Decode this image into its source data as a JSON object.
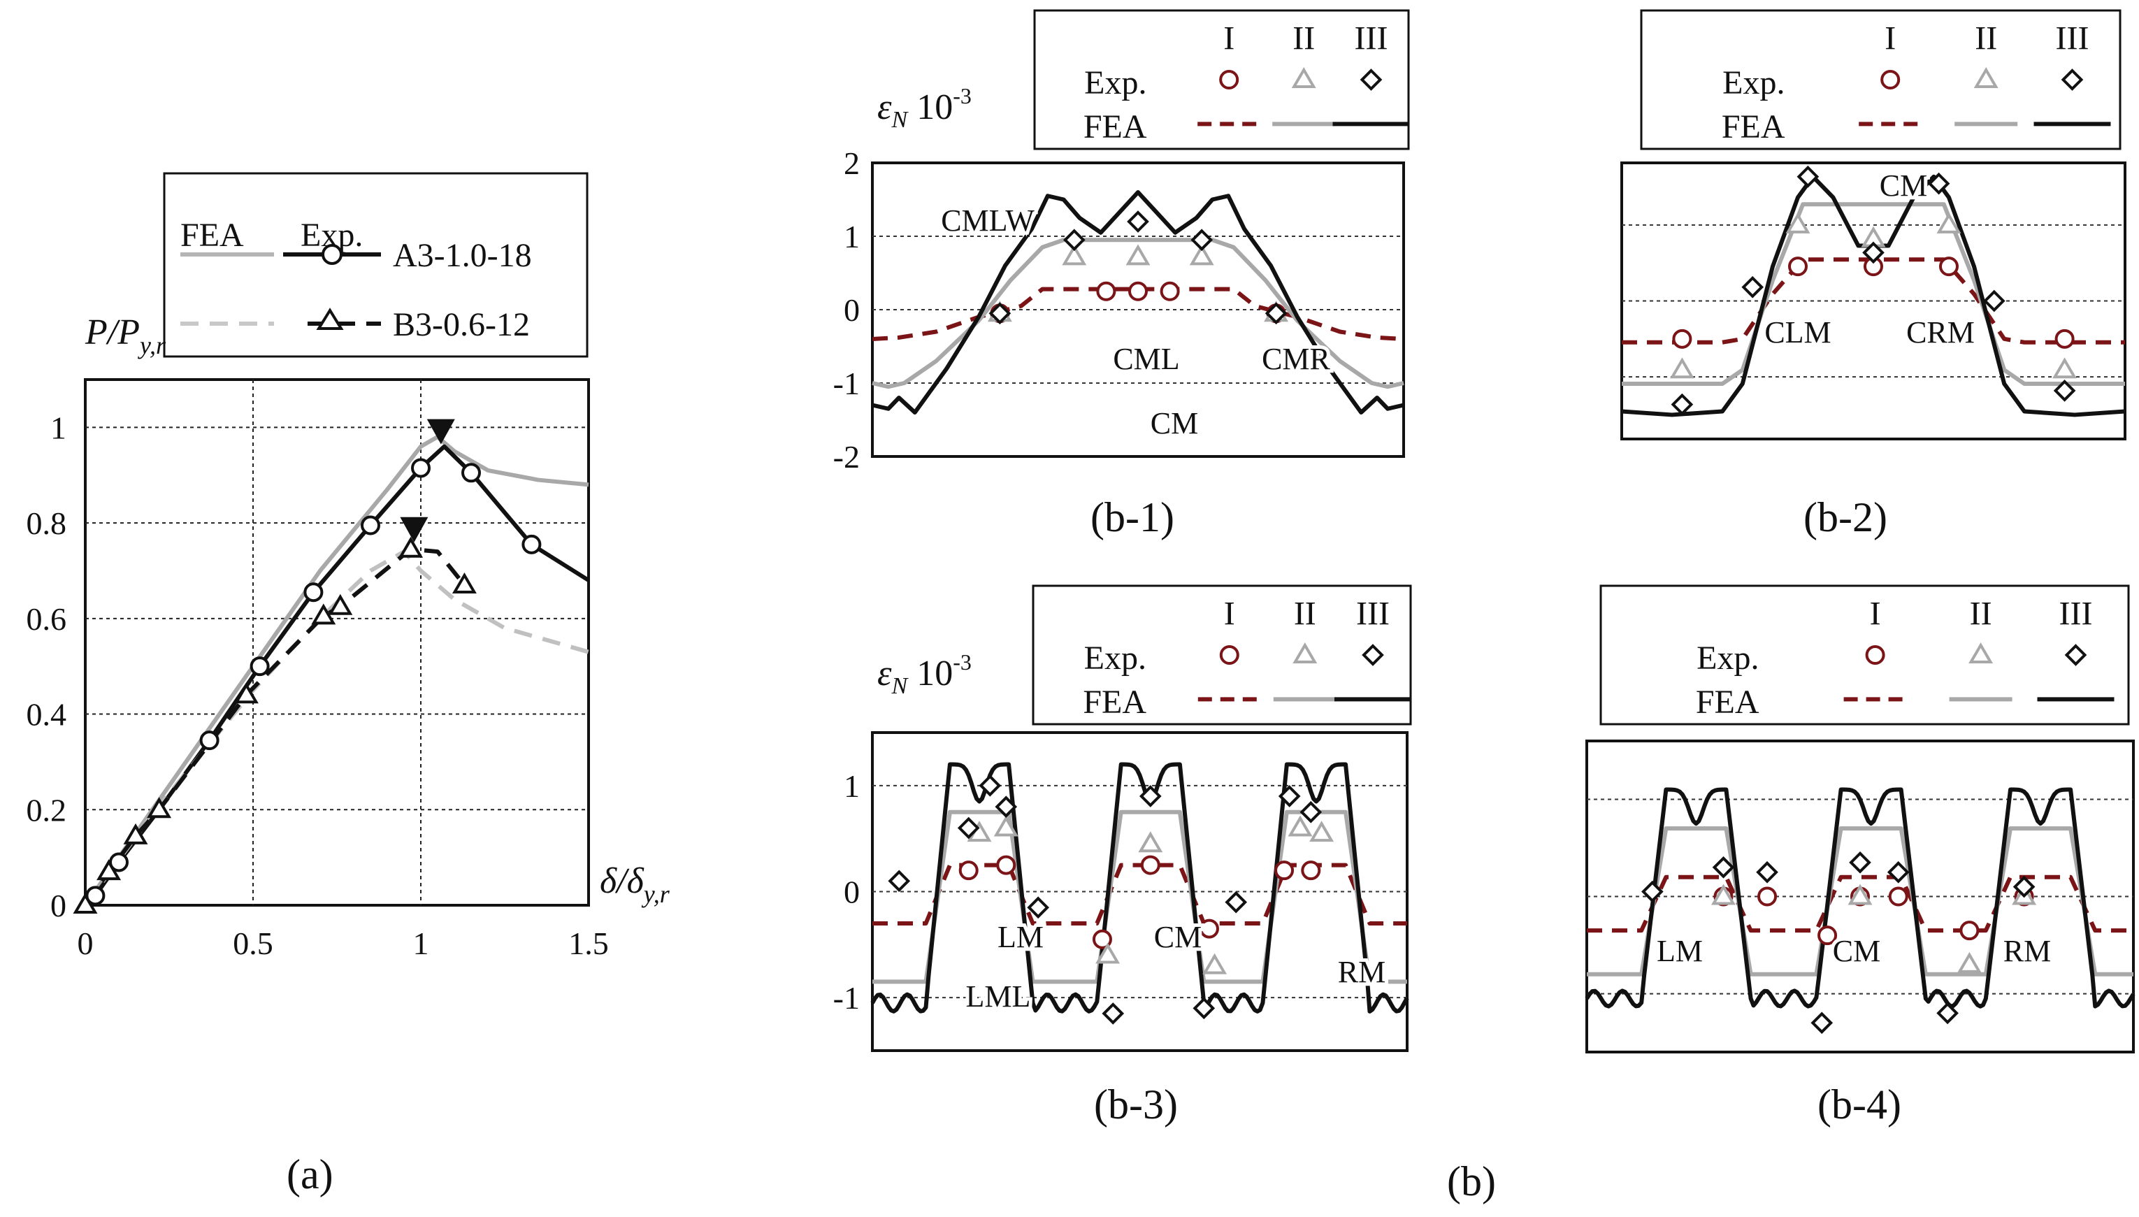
{
  "colors": {
    "black": "#111111",
    "gray": "#a8a8a8",
    "lightgray": "#c0c0c0",
    "red": "#7b1416"
  },
  "captions": {
    "a": "(a)",
    "b": "(b)",
    "b1": "(b-1)",
    "b2": "(b-2)",
    "b3": "(b-3)",
    "b4": "(b-4)"
  },
  "chart_data": [
    {
      "id": "a",
      "type": "line",
      "title": "",
      "xlabel": "δ/δy,r",
      "ylabel": "P/Py,r",
      "xlim": [
        0,
        1.5
      ],
      "ylim": [
        0,
        1.1
      ],
      "xticks": [
        "0",
        "0.5",
        "1",
        "1.5"
      ],
      "yticks": [
        "0",
        "0.2",
        "0.4",
        "0.6",
        "0.8",
        "1"
      ],
      "grid": true,
      "legend": {
        "header_fea": "FEA",
        "header_exp": "Exp.",
        "entries": [
          "A3-1.0-18",
          "B3-0.6-12"
        ],
        "position": "above"
      },
      "series": [
        {
          "name": "A3-1.0-18 FEA",
          "style": "gray-solid",
          "x": [
            0,
            0.2,
            0.5,
            0.7,
            0.9,
            1.0,
            1.05,
            1.1,
            1.2,
            1.35,
            1.5
          ],
          "y": [
            0,
            0.2,
            0.5,
            0.7,
            0.87,
            0.96,
            0.98,
            0.95,
            0.91,
            0.89,
            0.88
          ]
        },
        {
          "name": "A3-1.0-18 Exp.",
          "style": "black-solid-circle",
          "x": [
            0,
            0.03,
            0.1,
            0.22,
            0.37,
            0.52,
            0.68,
            0.85,
            1.0,
            1.07,
            1.15,
            1.33,
            1.5
          ],
          "y": [
            0,
            0.02,
            0.09,
            0.2,
            0.345,
            0.5,
            0.655,
            0.795,
            0.915,
            0.96,
            0.905,
            0.755,
            0.68
          ],
          "markers_x": [
            0.03,
            0.1,
            0.37,
            0.52,
            0.68,
            0.85,
            1.0,
            1.15,
            1.33
          ],
          "markers_y": [
            0.02,
            0.09,
            0.345,
            0.5,
            0.655,
            0.795,
            0.915,
            0.905,
            0.755
          ]
        },
        {
          "name": "B3-0.6-12 FEA",
          "style": "gray-dashed",
          "x": [
            0,
            0.2,
            0.5,
            0.7,
            0.85,
            0.95,
            1.0,
            1.1,
            1.25,
            1.5
          ],
          "y": [
            0,
            0.19,
            0.45,
            0.6,
            0.7,
            0.74,
            0.7,
            0.64,
            0.58,
            0.53
          ]
        },
        {
          "name": "B3-0.6-12 Exp.",
          "style": "black-dashed-triangle",
          "x": [
            0,
            0.07,
            0.15,
            0.22,
            0.48,
            0.71,
            0.76,
            0.97,
            1.05,
            1.13
          ],
          "y": [
            0,
            0.07,
            0.145,
            0.2,
            0.44,
            0.605,
            0.625,
            0.745,
            0.74,
            0.67
          ],
          "markers_x": [
            0,
            0.07,
            0.15,
            0.22,
            0.48,
            0.71,
            0.76,
            0.97,
            1.13
          ],
          "markers_y": [
            0,
            0.07,
            0.145,
            0.2,
            0.44,
            0.605,
            0.625,
            0.745,
            0.67
          ]
        }
      ],
      "annotations": [
        {
          "kind": "peak-marker",
          "series": "A3-1.0-18",
          "x": 1.06,
          "y": 0.985
        },
        {
          "kind": "peak-marker",
          "series": "B3-0.6-12",
          "x": 0.98,
          "y": 0.78
        }
      ]
    },
    {
      "id": "b-1",
      "type": "line",
      "ylabel": "εN 10-3",
      "ylim": [
        -2,
        2
      ],
      "yticks": [
        "-2",
        "-1",
        "0",
        "1",
        "2"
      ],
      "legend": {
        "cols": [
          "I",
          "II",
          "III"
        ],
        "rows": [
          "Exp.",
          "FEA"
        ],
        "position": "top"
      },
      "region_labels": [
        "CMLW",
        "CML",
        "CMR",
        "CM"
      ],
      "series": [
        {
          "name": "I FEA",
          "style": "red-dashed",
          "x": [
            0,
            0.05,
            0.12,
            0.2,
            0.28,
            0.32,
            0.42,
            0.58,
            0.68,
            0.72,
            0.8,
            0.88,
            0.95,
            1
          ],
          "y": [
            -0.4,
            -0.38,
            -0.3,
            -0.1,
            0.05,
            0.28,
            0.28,
            0.28,
            0.28,
            0.05,
            -0.1,
            -0.3,
            -0.38,
            -0.4
          ]
        },
        {
          "name": "II FEA",
          "style": "gray-solid",
          "x": [
            0,
            0.03,
            0.06,
            0.12,
            0.2,
            0.26,
            0.32,
            0.36,
            0.44,
            0.5,
            0.56,
            0.64,
            0.68,
            0.74,
            0.8,
            0.88,
            0.94,
            0.97,
            1
          ],
          "y": [
            -1,
            -1.05,
            -1,
            -0.7,
            -0.15,
            0.4,
            0.85,
            0.95,
            0.95,
            0.95,
            0.95,
            0.95,
            0.85,
            0.4,
            -0.15,
            -0.7,
            -1,
            -1.05,
            -1
          ]
        },
        {
          "name": "III FEA",
          "style": "black-solid",
          "x": [
            0,
            0.03,
            0.05,
            0.08,
            0.14,
            0.2,
            0.25,
            0.3,
            0.33,
            0.36,
            0.39,
            0.43,
            0.5,
            0.57,
            0.61,
            0.64,
            0.67,
            0.7,
            0.75,
            0.8,
            0.86,
            0.92,
            0.95,
            0.97,
            1
          ],
          "y": [
            -1.3,
            -1.35,
            -1.2,
            -1.4,
            -0.8,
            -0.1,
            0.6,
            1.1,
            1.55,
            1.5,
            1.25,
            1.05,
            1.6,
            1.05,
            1.25,
            1.5,
            1.55,
            1.1,
            0.6,
            -0.1,
            -0.8,
            -1.4,
            -1.2,
            -1.35,
            -1.3
          ]
        },
        {
          "name": "I Exp.",
          "style": "red-circle",
          "x": [
            0.24,
            0.44,
            0.5,
            0.56,
            0.76
          ],
          "y": [
            -0.05,
            0.25,
            0.25,
            0.25,
            -0.05
          ]
        },
        {
          "name": "II Exp.",
          "style": "gray-triangle",
          "x": [
            0.24,
            0.38,
            0.5,
            0.62,
            0.76
          ],
          "y": [
            -0.05,
            0.72,
            0.72,
            0.72,
            -0.05
          ]
        },
        {
          "name": "III Exp.",
          "style": "black-diamond",
          "x": [
            0.24,
            0.38,
            0.5,
            0.62,
            0.76
          ],
          "y": [
            -0.05,
            0.95,
            1.2,
            0.95,
            -0.05
          ]
        }
      ]
    },
    {
      "id": "b-2",
      "type": "line",
      "legend": {
        "cols": [
          "I",
          "II",
          "III"
        ],
        "rows": [
          "Exp.",
          "FEA"
        ],
        "position": "top"
      },
      "region_labels": [
        "CM",
        "CLM",
        "CRM"
      ],
      "series": [
        {
          "name": "I FEA",
          "style": "red-dashed",
          "x": [
            0,
            0.2,
            0.24,
            0.3,
            0.36,
            0.64,
            0.7,
            0.76,
            0.8,
            1
          ],
          "y": [
            -0.6,
            -0.6,
            -0.55,
            0.1,
            0.6,
            0.6,
            0.1,
            -0.55,
            -0.6,
            -0.6
          ]
        },
        {
          "name": "II FEA",
          "style": "gray-solid",
          "x": [
            0,
            0.2,
            0.24,
            0.3,
            0.36,
            0.45,
            0.55,
            0.64,
            0.7,
            0.76,
            0.8,
            1
          ],
          "y": [
            -1.2,
            -1.2,
            -1.0,
            0.3,
            1.4,
            1.4,
            1.4,
            1.4,
            0.3,
            -1.0,
            -1.2,
            -1.2
          ]
        },
        {
          "name": "III FEA",
          "style": "black-solid",
          "x": [
            0,
            0.1,
            0.2,
            0.24,
            0.3,
            0.35,
            0.38,
            0.42,
            0.47,
            0.53,
            0.58,
            0.62,
            0.65,
            0.7,
            0.76,
            0.8,
            0.9,
            1
          ],
          "y": [
            -1.6,
            -1.65,
            -1.6,
            -1.2,
            0.5,
            1.5,
            1.8,
            1.5,
            0.8,
            0.8,
            1.5,
            1.8,
            1.5,
            0.5,
            -1.2,
            -1.6,
            -1.65,
            -1.6
          ]
        },
        {
          "name": "I Exp.",
          "style": "red-circle",
          "x": [
            0.12,
            0.35,
            0.5,
            0.65,
            0.88
          ],
          "y": [
            -0.55,
            0.5,
            0.5,
            0.5,
            -0.55
          ]
        },
        {
          "name": "II Exp.",
          "style": "gray-triangle",
          "x": [
            0.12,
            0.35,
            0.5,
            0.65,
            0.88
          ],
          "y": [
            -1.0,
            1.1,
            0.9,
            1.1,
            -1.0
          ]
        },
        {
          "name": "III Exp.",
          "style": "black-diamond",
          "x": [
            0.12,
            0.26,
            0.37,
            0.5,
            0.63,
            0.74,
            0.88
          ],
          "y": [
            -1.5,
            0.2,
            1.8,
            0.7,
            1.7,
            0.0,
            -1.3
          ]
        }
      ]
    },
    {
      "id": "b-3",
      "type": "line",
      "ylabel": "εN 10-3",
      "ylim": [
        -1.5,
        1.5
      ],
      "yticks": [
        "-1",
        "0",
        "1"
      ],
      "legend": {
        "cols": [
          "I",
          "II",
          "III"
        ],
        "rows": [
          "Exp.",
          "FEA"
        ],
        "position": "top"
      },
      "region_labels": [
        "LM",
        "CM",
        "RM",
        "LML"
      ],
      "series": [
        {
          "name": "I FEA",
          "style": "red-dashed",
          "period": true,
          "amplitude_I": [
            0.25,
            -0.3
          ]
        },
        {
          "name": "II FEA",
          "style": "gray-solid",
          "period": true,
          "amplitude_II": [
            0.75,
            -0.85
          ]
        },
        {
          "name": "III FEA",
          "style": "black-solid",
          "period": true,
          "amplitude_III": [
            1.2,
            -1.05
          ]
        },
        {
          "name": "I Exp.",
          "style": "red-circle",
          "x": [
            0.18,
            0.25,
            0.43,
            0.52,
            0.63,
            0.77,
            0.82
          ],
          "y": [
            0.2,
            0.25,
            -0.45,
            0.25,
            -0.35,
            0.2,
            0.2
          ]
        },
        {
          "name": "II Exp.",
          "style": "gray-triangle",
          "x": [
            0.2,
            0.25,
            0.44,
            0.52,
            0.64,
            0.8,
            0.84
          ],
          "y": [
            0.55,
            0.6,
            -0.6,
            0.45,
            -0.7,
            0.6,
            0.55
          ]
        },
        {
          "name": "III Exp.",
          "style": "black-diamond",
          "x": [
            0.05,
            0.18,
            0.22,
            0.25,
            0.31,
            0.45,
            0.52,
            0.62,
            0.68,
            0.78,
            0.82
          ],
          "y": [
            0.1,
            0.6,
            1.0,
            0.8,
            -0.15,
            -1.15,
            0.9,
            -1.1,
            -0.1,
            0.9,
            0.75
          ]
        }
      ]
    },
    {
      "id": "b-4",
      "type": "line",
      "legend": {
        "cols": [
          "I",
          "II",
          "III"
        ],
        "rows": [
          "Exp.",
          "FEA"
        ],
        "position": "top"
      },
      "region_labels": [
        "LM",
        "CM",
        "RM"
      ],
      "series": [
        {
          "name": "I FEA",
          "style": "red-dashed",
          "period": true,
          "amplitude_I": [
            0.2,
            -0.35
          ]
        },
        {
          "name": "II FEA",
          "style": "gray-solid",
          "period": true,
          "amplitude_II": [
            0.7,
            -0.8
          ]
        },
        {
          "name": "III FEA",
          "style": "black-solid",
          "period": true,
          "amplitude_III": [
            1.1,
            -1.05
          ]
        },
        {
          "name": "I Exp.",
          "style": "red-circle",
          "x": [
            0.25,
            0.33,
            0.44,
            0.5,
            0.57,
            0.7,
            0.8
          ],
          "y": [
            0.0,
            0.0,
            -0.4,
            0.0,
            0.0,
            -0.35,
            0.0
          ]
        },
        {
          "name": "II Exp.",
          "style": "gray-triangle",
          "x": [
            0.25,
            0.5,
            0.7,
            0.8
          ],
          "y": [
            0.0,
            0.0,
            -0.7,
            0.0
          ]
        },
        {
          "name": "III Exp.",
          "style": "black-diamond",
          "x": [
            0.12,
            0.25,
            0.33,
            0.43,
            0.5,
            0.57,
            0.66,
            0.8
          ],
          "y": [
            0.05,
            0.3,
            0.25,
            -1.3,
            0.35,
            0.25,
            -1.2,
            0.1
          ]
        }
      ]
    }
  ]
}
